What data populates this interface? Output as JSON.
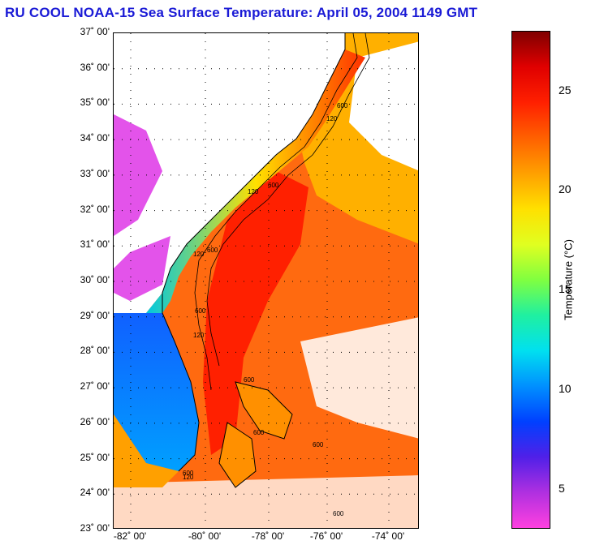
{
  "title": "RU COOL  NOAA-15  Sea Surface Temperature:  April 05, 2004 1149 GMT",
  "map": {
    "lat_labels": [
      "37˚ 00'",
      "36˚ 00'",
      "35˚ 00'",
      "34˚ 00'",
      "33˚ 00'",
      "32˚ 00'",
      "31˚ 00'",
      "30˚ 00'",
      "29˚ 00'",
      "28˚ 00'",
      "27˚ 00'",
      "26˚ 00'",
      "25˚ 00'",
      "24˚ 00'",
      "23˚ 00'"
    ],
    "lon_labels": [
      "-82˚ 00'",
      "-80˚ 00'",
      "-78˚ 00'",
      "-76˚ 00'",
      "-74˚ 00'"
    ],
    "isobath_labels": [
      "600",
      "120",
      "600",
      "120",
      "600",
      "120",
      "600",
      "120",
      "600",
      "600",
      "600",
      "120",
      "600",
      "600"
    ],
    "colors": {
      "land": "#ffffff",
      "coast": "#000000",
      "grid": "#000000"
    }
  },
  "colorbar": {
    "title": "Temperature (°C)",
    "ticks": [
      "25",
      "20",
      "15",
      "10",
      "5"
    ],
    "tick_values": [
      25,
      20,
      15,
      10,
      5
    ],
    "range": [
      3,
      28
    ],
    "colors": [
      "#ff40e0",
      "#b030e0",
      "#5020e8",
      "#0040ff",
      "#0090ff",
      "#00e0f0",
      "#20f0a0",
      "#80ff40",
      "#e0ff20",
      "#ffe000",
      "#ffa000",
      "#ff6000",
      "#ff2000",
      "#e00000",
      "#800000"
    ]
  }
}
